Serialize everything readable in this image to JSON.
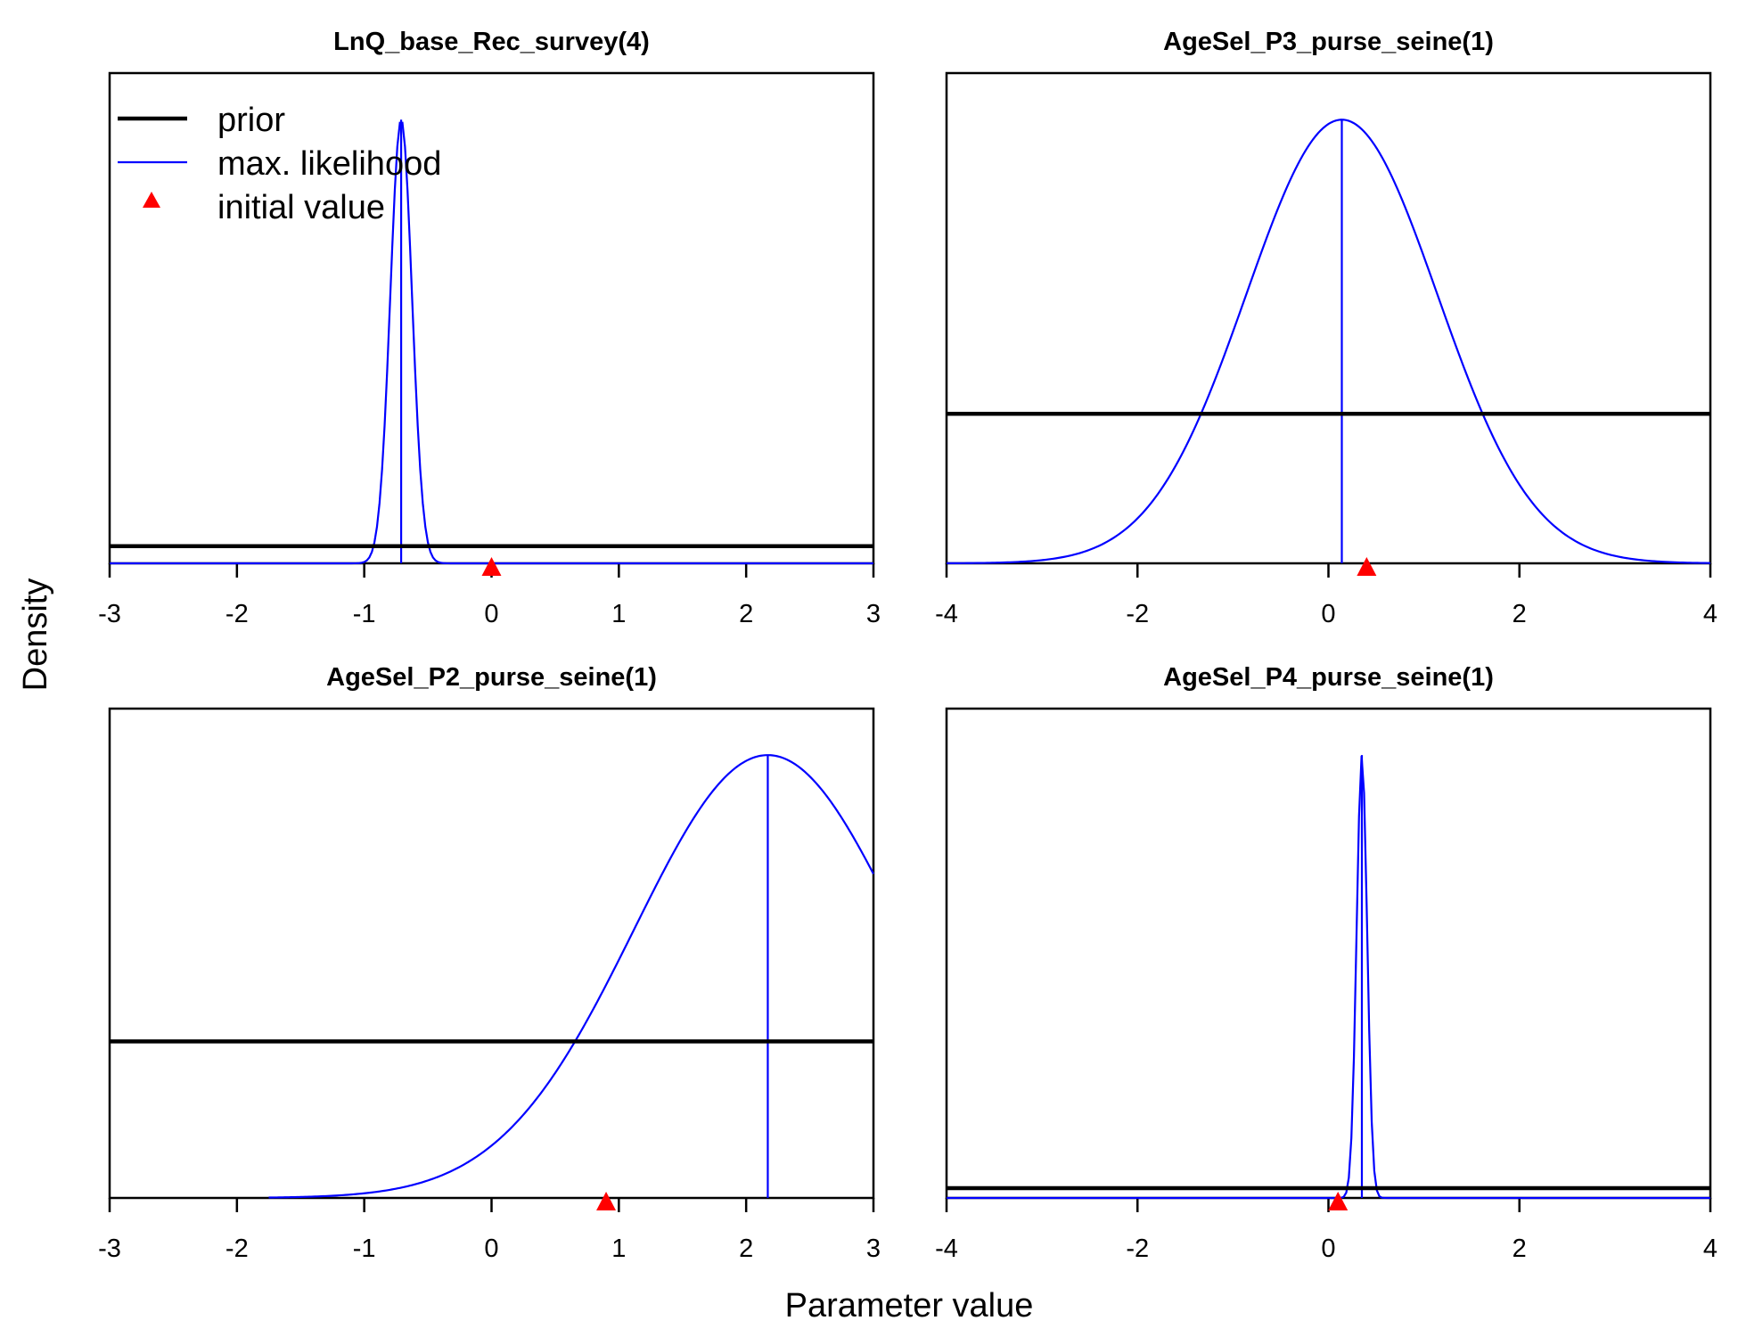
{
  "figure": {
    "xlabel": "Parameter value",
    "ylabel": "Density"
  },
  "legend": {
    "placement": "top-left of first panel",
    "items": [
      {
        "label": "prior",
        "symbol": "line",
        "color": "#000000"
      },
      {
        "label": "max. likelihood",
        "symbol": "line",
        "color": "#0000ff"
      },
      {
        "label": "initial value",
        "symbol": "triangle",
        "color": "#ff0000"
      }
    ]
  },
  "chart_data": [
    {
      "type": "line",
      "title": "LnQ_base_Rec_survey(4)",
      "xlim": [
        -3,
        3
      ],
      "xticks": [
        -3,
        -2,
        -1,
        0,
        1,
        2,
        3
      ],
      "ylim": [
        0,
        1
      ],
      "series": [
        {
          "name": "prior",
          "kind": "uniform",
          "level": 0.035
        },
        {
          "name": "max. likelihood",
          "kind": "normal",
          "mean": -0.71,
          "sd": 0.085,
          "peak": 0.905,
          "range": [
            -3,
            3
          ]
        }
      ],
      "mle": -0.71,
      "initial_value": 0.0
    },
    {
      "type": "line",
      "title": "AgeSel_P3_purse_seine(1)",
      "xlim": [
        -4,
        4
      ],
      "xticks": [
        -4,
        -2,
        0,
        2,
        4
      ],
      "ylim": [
        0,
        1
      ],
      "series": [
        {
          "name": "prior",
          "kind": "uniform",
          "level": 0.305
        },
        {
          "name": "max. likelihood",
          "kind": "normal",
          "mean": 0.14,
          "sd": 1.0,
          "peak": 0.905,
          "range": [
            -4,
            4
          ]
        }
      ],
      "mle": 0.14,
      "initial_value": 0.4
    },
    {
      "type": "line",
      "title": "AgeSel_P2_purse_seine(1)",
      "xlim": [
        -3,
        3
      ],
      "xticks": [
        -3,
        -2,
        -1,
        0,
        1,
        2,
        3
      ],
      "ylim": [
        0,
        1
      ],
      "series": [
        {
          "name": "prior",
          "kind": "uniform",
          "level": 0.32
        },
        {
          "name": "max. likelihood",
          "kind": "normal",
          "mean": 2.17,
          "sd": 1.05,
          "peak": 0.905,
          "range": [
            -1.75,
            3
          ]
        }
      ],
      "mle": 2.17,
      "initial_value": 0.9
    },
    {
      "type": "line",
      "title": "AgeSel_P4_purse_seine(1)",
      "xlim": [
        -4,
        4
      ],
      "xticks": [
        -4,
        -2,
        0,
        2,
        4
      ],
      "ylim": [
        0,
        1
      ],
      "series": [
        {
          "name": "prior",
          "kind": "uniform",
          "level": 0.02
        },
        {
          "name": "max. likelihood",
          "kind": "normal",
          "mean": 0.35,
          "sd": 0.055,
          "peak": 0.905,
          "range": [
            -4,
            4
          ]
        }
      ],
      "mle": 0.35,
      "initial_value": 0.1
    }
  ]
}
